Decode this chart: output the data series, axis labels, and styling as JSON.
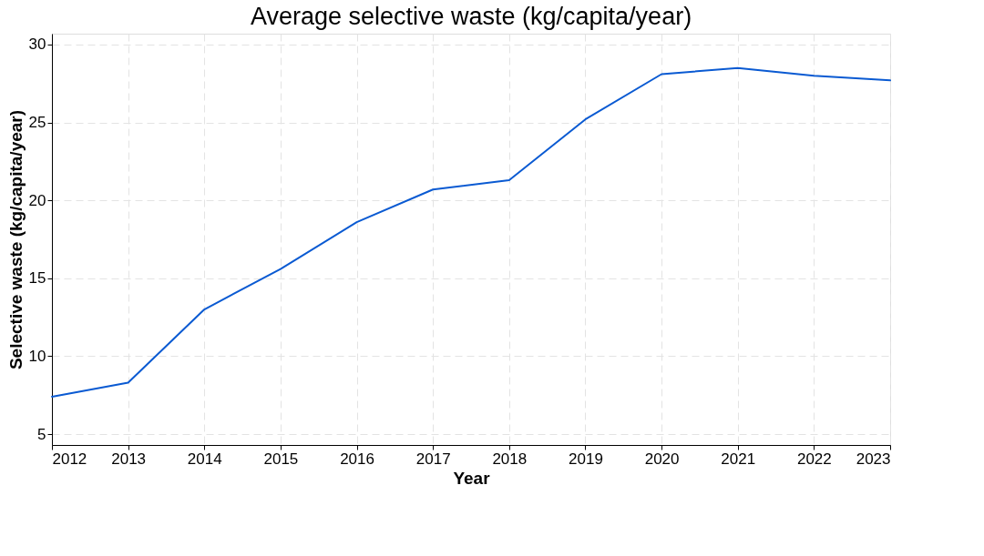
{
  "chart_data": {
    "type": "line",
    "title": "Average selective waste (kg/capita/year)",
    "xlabel": "Year",
    "ylabel": "Selective waste (kg/capita/year)",
    "x": [
      2012,
      2013,
      2014,
      2015,
      2016,
      2017,
      2018,
      2019,
      2020,
      2021,
      2022,
      2023
    ],
    "series": [
      {
        "color": "#0a5ad2",
        "values": [
          7.4,
          8.3,
          13.0,
          15.6,
          18.6,
          20.7,
          21.3,
          25.2,
          28.1,
          28.5,
          28.0,
          27.7
        ]
      }
    ],
    "xlim": [
      2012,
      2023
    ],
    "xticks": [
      2012,
      2013,
      2014,
      2015,
      2016,
      2017,
      2018,
      2019,
      2020,
      2021,
      2022,
      2023
    ],
    "ylim": [
      4.3,
      30.7
    ],
    "yticks": [
      5,
      10,
      15,
      20,
      25,
      30
    ],
    "grid": true,
    "legend": false,
    "marker": "none",
    "line_style": "solid"
  }
}
